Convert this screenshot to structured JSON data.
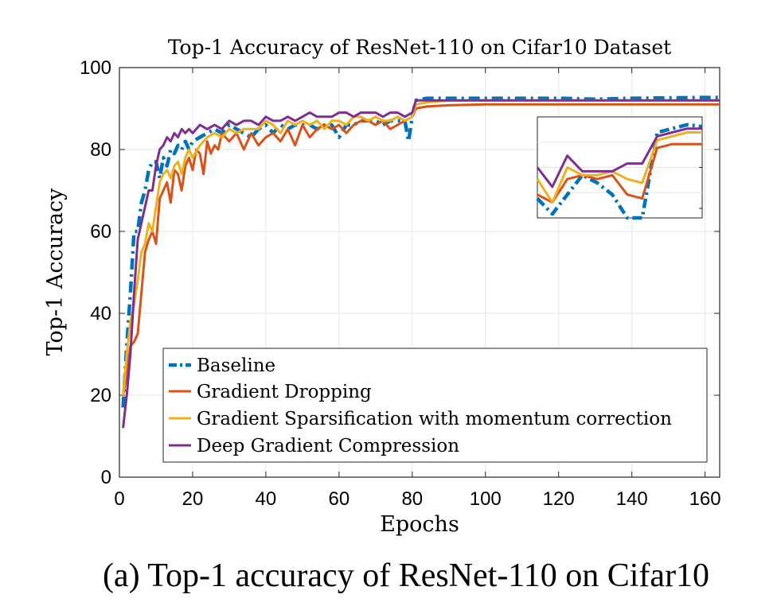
{
  "colors": {
    "baseline": "#0072BD",
    "gradient_dropping": "#D95319",
    "sparsification": "#EDB120",
    "dgc": "#7E2F8E",
    "grid": "#e6e6e6",
    "axis": "#262626"
  },
  "chart_data": {
    "type": "line",
    "title": "Top-1 Accuracy of ResNet-110 on Cifar10 Dataset",
    "xlabel": "Epochs",
    "ylabel": "Top-1 Accuracy",
    "xlim": [
      0,
      164
    ],
    "ylim": [
      0,
      100
    ],
    "xticks": [
      0,
      20,
      40,
      60,
      80,
      100,
      120,
      140,
      160
    ],
    "yticks": [
      0,
      20,
      40,
      60,
      80,
      100
    ],
    "grid": true,
    "legend_position": "bottom-left",
    "caption": "(a) Top-1 accuracy of ResNet-110 on Cifar10",
    "series": [
      {
        "name": "Baseline",
        "style": "dash-dot",
        "x": [
          1,
          2,
          3,
          4,
          5,
          6,
          7,
          8,
          9,
          10,
          11,
          12,
          13,
          14,
          15,
          16,
          17,
          18,
          19,
          20,
          22,
          24,
          26,
          28,
          30,
          32,
          34,
          36,
          38,
          40,
          42,
          44,
          46,
          48,
          50,
          52,
          54,
          56,
          58,
          60,
          62,
          64,
          66,
          68,
          70,
          72,
          74,
          76,
          78,
          79,
          80,
          81,
          84,
          90,
          100,
          110,
          120,
          130,
          140,
          150,
          160,
          164
        ],
        "y": [
          17,
          32,
          45,
          60,
          60,
          67,
          70,
          75,
          77,
          77,
          73,
          78,
          76,
          80,
          79,
          81,
          80,
          82,
          80,
          82,
          83,
          84,
          85,
          84,
          86,
          85,
          84,
          83,
          85,
          86,
          84,
          86,
          85,
          86,
          86,
          86,
          85,
          86,
          86,
          83,
          86,
          86,
          87,
          87,
          87,
          86,
          87,
          87,
          87,
          82,
          88,
          92,
          92.5,
          92.5,
          92.5,
          92.5,
          92.5,
          92.3,
          92.5,
          92.6,
          92.7,
          92.7
        ]
      },
      {
        "name": "Gradient Dropping",
        "style": "solid",
        "x": [
          1,
          2,
          3,
          4,
          5,
          6,
          7,
          8,
          9,
          10,
          11,
          12,
          13,
          14,
          15,
          16,
          17,
          18,
          19,
          20,
          21,
          22,
          23,
          24,
          25,
          26,
          27,
          28,
          29,
          30,
          32,
          34,
          36,
          38,
          40,
          42,
          44,
          46,
          48,
          50,
          52,
          54,
          56,
          58,
          60,
          62,
          64,
          66,
          68,
          70,
          72,
          74,
          76,
          78,
          80,
          81,
          84,
          90,
          100,
          110,
          120,
          130,
          140,
          150,
          160,
          164
        ],
        "y": [
          20,
          25,
          32,
          33,
          35,
          45,
          55,
          58,
          60,
          57,
          68,
          70,
          72,
          67,
          75,
          74,
          70,
          76,
          78,
          75,
          80,
          79,
          74,
          82,
          79,
          81,
          80,
          84,
          83,
          82,
          84,
          80,
          84,
          81,
          83,
          84,
          82,
          85,
          81,
          86,
          83,
          85,
          86,
          85,
          86,
          84,
          86,
          87,
          87,
          86,
          87,
          85,
          86,
          87,
          88,
          90,
          90.5,
          90.8,
          91,
          91,
          91,
          91,
          91,
          91,
          91,
          91
        ]
      },
      {
        "name": "Gradient Sparsification with momentum correction",
        "style": "solid",
        "x": [
          1,
          2,
          3,
          4,
          5,
          6,
          7,
          8,
          9,
          10,
          11,
          12,
          13,
          14,
          15,
          16,
          17,
          18,
          19,
          20,
          22,
          24,
          26,
          28,
          30,
          32,
          34,
          36,
          38,
          40,
          42,
          44,
          46,
          48,
          50,
          52,
          54,
          56,
          58,
          60,
          62,
          64,
          66,
          68,
          70,
          72,
          74,
          76,
          78,
          80,
          81,
          84,
          90,
          100,
          110,
          120,
          130,
          140,
          150,
          160,
          164
        ],
        "y": [
          20,
          30,
          38,
          42,
          48,
          55,
          57,
          62,
          60,
          66,
          72,
          74,
          75,
          73,
          76,
          77,
          74,
          78,
          80,
          78,
          81,
          83,
          84,
          83,
          85,
          84,
          85,
          85,
          85,
          87,
          86,
          84,
          87,
          86,
          87,
          86,
          87,
          85,
          87,
          87,
          86,
          88,
          88,
          87,
          88,
          87,
          87,
          88,
          87,
          88,
          91,
          91.5,
          92,
          92,
          92,
          92,
          92,
          92,
          92,
          92,
          92
        ]
      },
      {
        "name": "Deep Gradient Compression",
        "style": "solid",
        "x": [
          1,
          2,
          3,
          4,
          5,
          6,
          7,
          8,
          9,
          10,
          11,
          12,
          13,
          14,
          15,
          16,
          17,
          18,
          19,
          20,
          22,
          24,
          26,
          28,
          30,
          32,
          34,
          36,
          38,
          40,
          42,
          44,
          46,
          48,
          50,
          52,
          54,
          56,
          58,
          60,
          62,
          64,
          66,
          68,
          70,
          72,
          74,
          76,
          78,
          80,
          81,
          84,
          90,
          100,
          110,
          120,
          130,
          140,
          150,
          160,
          164
        ],
        "y": [
          12,
          20,
          30,
          45,
          58,
          62,
          66,
          70,
          70,
          76,
          80,
          81,
          83,
          82,
          84,
          83,
          85,
          84,
          85,
          84,
          86,
          85,
          86,
          85,
          87,
          86,
          87,
          87,
          86,
          88,
          87,
          87,
          88,
          87,
          88,
          89,
          88,
          88,
          88,
          89,
          89,
          88,
          89,
          89,
          89,
          88,
          89,
          89,
          88,
          89,
          92,
          92,
          92,
          92,
          92,
          92,
          92,
          92,
          92,
          92,
          92
        ]
      }
    ],
    "inset_series": [
      {
        "name": "Baseline",
        "values": [
          67,
          63,
          68,
          73,
          71,
          68,
          60,
          58,
          84,
          85,
          86,
          85.5
        ]
      },
      {
        "name": "Gradient Dropping",
        "values": [
          68,
          66,
          72,
          73,
          72,
          73,
          68,
          67,
          80,
          81,
          81,
          81
        ]
      },
      {
        "name": "Gradient Sparsification with momentum correction",
        "values": [
          72,
          66,
          75,
          73,
          73,
          74,
          72,
          71,
          82,
          83,
          84,
          84
        ]
      },
      {
        "name": "Deep Gradient Compression",
        "values": [
          75,
          70,
          78,
          74,
          74,
          74,
          76,
          76,
          83,
          84,
          85,
          85
        ]
      }
    ],
    "inset_ylim": [
      62,
      88
    ]
  }
}
